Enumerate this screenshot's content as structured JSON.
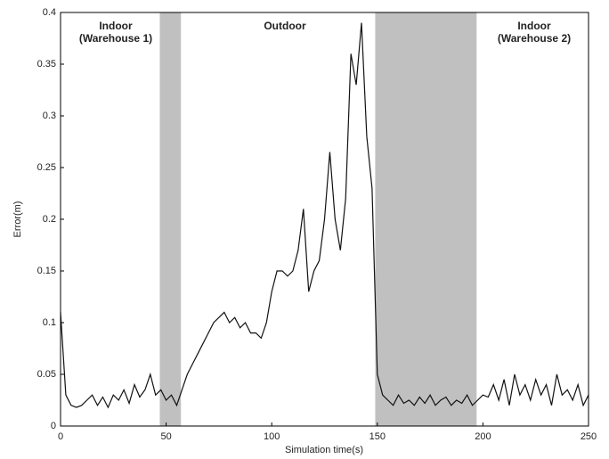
{
  "chart_data": {
    "type": "line",
    "xlabel": "Simulation time(s)",
    "ylabel": "Error(m)",
    "annotations": [
      [
        "Indoor",
        "(Warehouse 1)"
      ],
      [
        "Outdoor"
      ],
      [
        "Indoor",
        "(Warehouse 2)"
      ]
    ],
    "shaded_regions": [
      [
        47,
        57
      ],
      [
        149,
        197
      ]
    ],
    "shade_color": "#c0c0c0",
    "xlim": [
      0,
      250
    ],
    "xticks": [
      0,
      50,
      100,
      150,
      200,
      250
    ],
    "ylim": [
      0,
      0.4
    ],
    "yticks": [
      0,
      0.05,
      0.1,
      0.15,
      0.2,
      0.25,
      0.3,
      0.35,
      0.4
    ],
    "series": [
      {
        "name": "Error",
        "color": "#111111",
        "x": [
          0,
          2.5,
          5,
          7.5,
          10,
          12.5,
          15,
          17.5,
          20,
          22.5,
          25,
          27.5,
          30,
          32.5,
          35,
          37.5,
          40,
          42.5,
          45,
          47.5,
          50,
          52.5,
          55,
          57.5,
          60,
          62.5,
          65,
          67.5,
          70,
          72.5,
          75,
          77.5,
          80,
          82.5,
          85,
          87.5,
          90,
          92.5,
          95,
          97.5,
          100,
          102.5,
          105,
          107.5,
          110,
          112.5,
          115,
          117.5,
          120,
          122.5,
          125,
          127.5,
          130,
          132.5,
          135,
          137.5,
          140,
          142.5,
          145,
          147.5,
          150,
          152.5,
          155,
          157.5,
          160,
          162.5,
          165,
          167.5,
          170,
          172.5,
          175,
          177.5,
          180,
          182.5,
          185,
          187.5,
          190,
          192.5,
          195,
          197.5,
          200,
          202.5,
          205,
          207.5,
          210,
          212.5,
          215,
          217.5,
          220,
          222.5,
          225,
          227.5,
          230,
          232.5,
          235,
          237.5,
          240,
          242.5,
          245,
          247.5,
          250
        ],
        "values": [
          0.11,
          0.03,
          0.02,
          0.018,
          0.02,
          0.025,
          0.03,
          0.02,
          0.028,
          0.018,
          0.03,
          0.025,
          0.035,
          0.022,
          0.04,
          0.028,
          0.035,
          0.05,
          0.03,
          0.035,
          0.025,
          0.03,
          0.02,
          0.035,
          0.05,
          0.06,
          0.07,
          0.08,
          0.09,
          0.1,
          0.105,
          0.11,
          0.1,
          0.105,
          0.095,
          0.1,
          0.09,
          0.09,
          0.085,
          0.1,
          0.13,
          0.15,
          0.15,
          0.145,
          0.15,
          0.17,
          0.21,
          0.13,
          0.15,
          0.16,
          0.2,
          0.265,
          0.2,
          0.17,
          0.22,
          0.36,
          0.33,
          0.39,
          0.28,
          0.23,
          0.05,
          0.03,
          0.025,
          0.02,
          0.03,
          0.022,
          0.025,
          0.02,
          0.028,
          0.022,
          0.03,
          0.02,
          0.025,
          0.028,
          0.02,
          0.025,
          0.022,
          0.03,
          0.02,
          0.025,
          0.03,
          0.028,
          0.04,
          0.025,
          0.045,
          0.02,
          0.05,
          0.03,
          0.04,
          0.025,
          0.045,
          0.03,
          0.04,
          0.02,
          0.05,
          0.03,
          0.035,
          0.025,
          0.04,
          0.02,
          0.03
        ]
      }
    ]
  }
}
